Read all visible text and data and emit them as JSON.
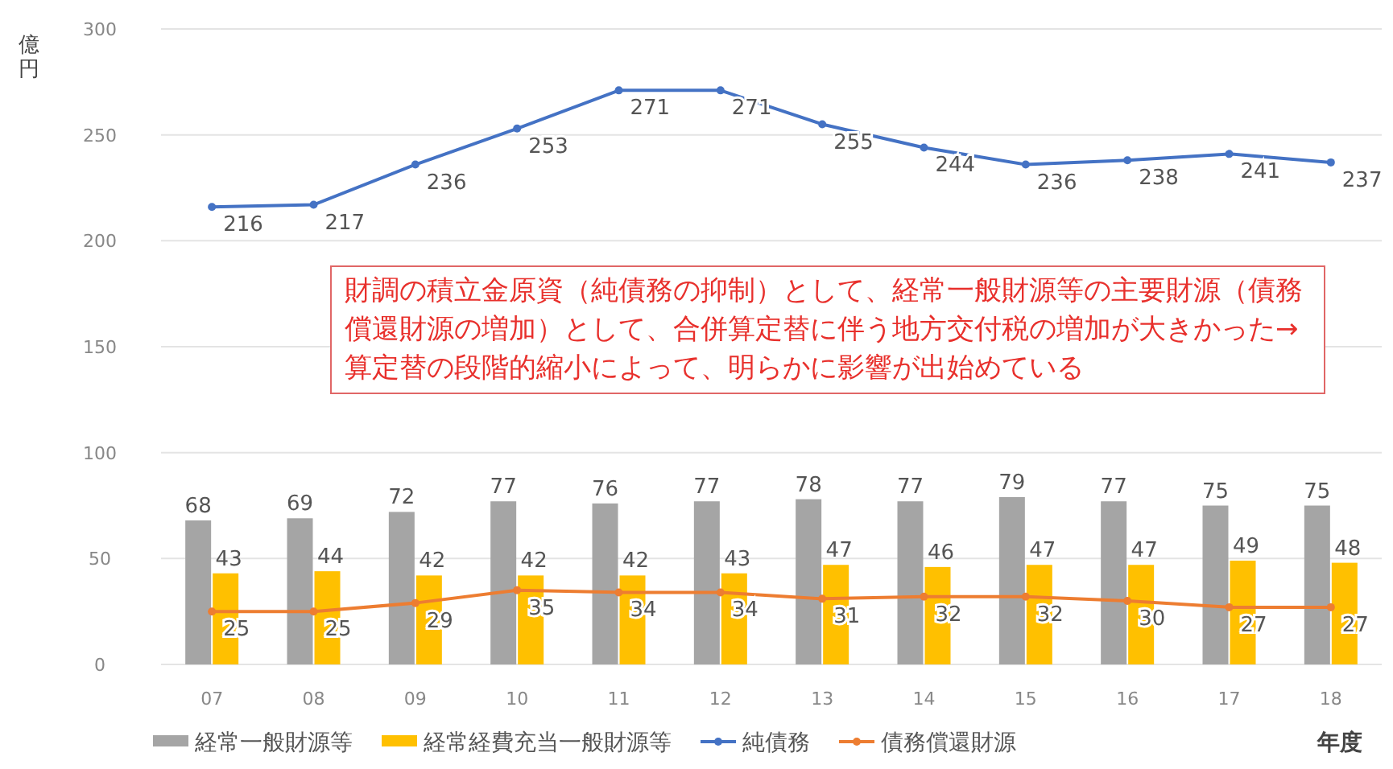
{
  "chart_data": {
    "type": "bar",
    "ylabel": "億円",
    "xlabel": "年度",
    "categories": [
      "07",
      "08",
      "09",
      "10",
      "11",
      "12",
      "13",
      "14",
      "15",
      "16",
      "17",
      "18"
    ],
    "series": [
      {
        "name": "経常一般財源等",
        "color": "#a5a5a5",
        "values": [
          68,
          69,
          72,
          77,
          76,
          77,
          78,
          77,
          79,
          77,
          75,
          75
        ]
      },
      {
        "name": "経常経費充当一般財源等",
        "color": "#ffc000",
        "values": [
          43,
          44,
          42,
          42,
          42,
          43,
          47,
          46,
          47,
          47,
          49,
          48
        ]
      },
      {
        "name": "純債務",
        "type": "line",
        "color": "#4472c4",
        "values": [
          216,
          217,
          236,
          253,
          271,
          271,
          255,
          244,
          236,
          238,
          241,
          237
        ]
      },
      {
        "name": "債務償還財源",
        "type": "line",
        "color": "#ed7d31",
        "values": [
          25,
          25,
          29,
          35,
          34,
          34,
          31,
          32,
          32,
          30,
          27,
          27
        ]
      }
    ],
    "ylim": [
      0,
      300
    ],
    "yticks": [
      0,
      50,
      100,
      150,
      200,
      250,
      300
    ],
    "grid": "y",
    "legend": "bottom",
    "marker": "circle",
    "data_labels": true,
    "annotations": [
      "財調の積立金原資（純債務の抑制）として、経常一般財源等の主要財源（債務償還財源の増加）として、合併算定替に伴う地方交付税の増加が大きかった→算定替の段階的縮小によって、明らかに影響が出始めている"
    ]
  }
}
